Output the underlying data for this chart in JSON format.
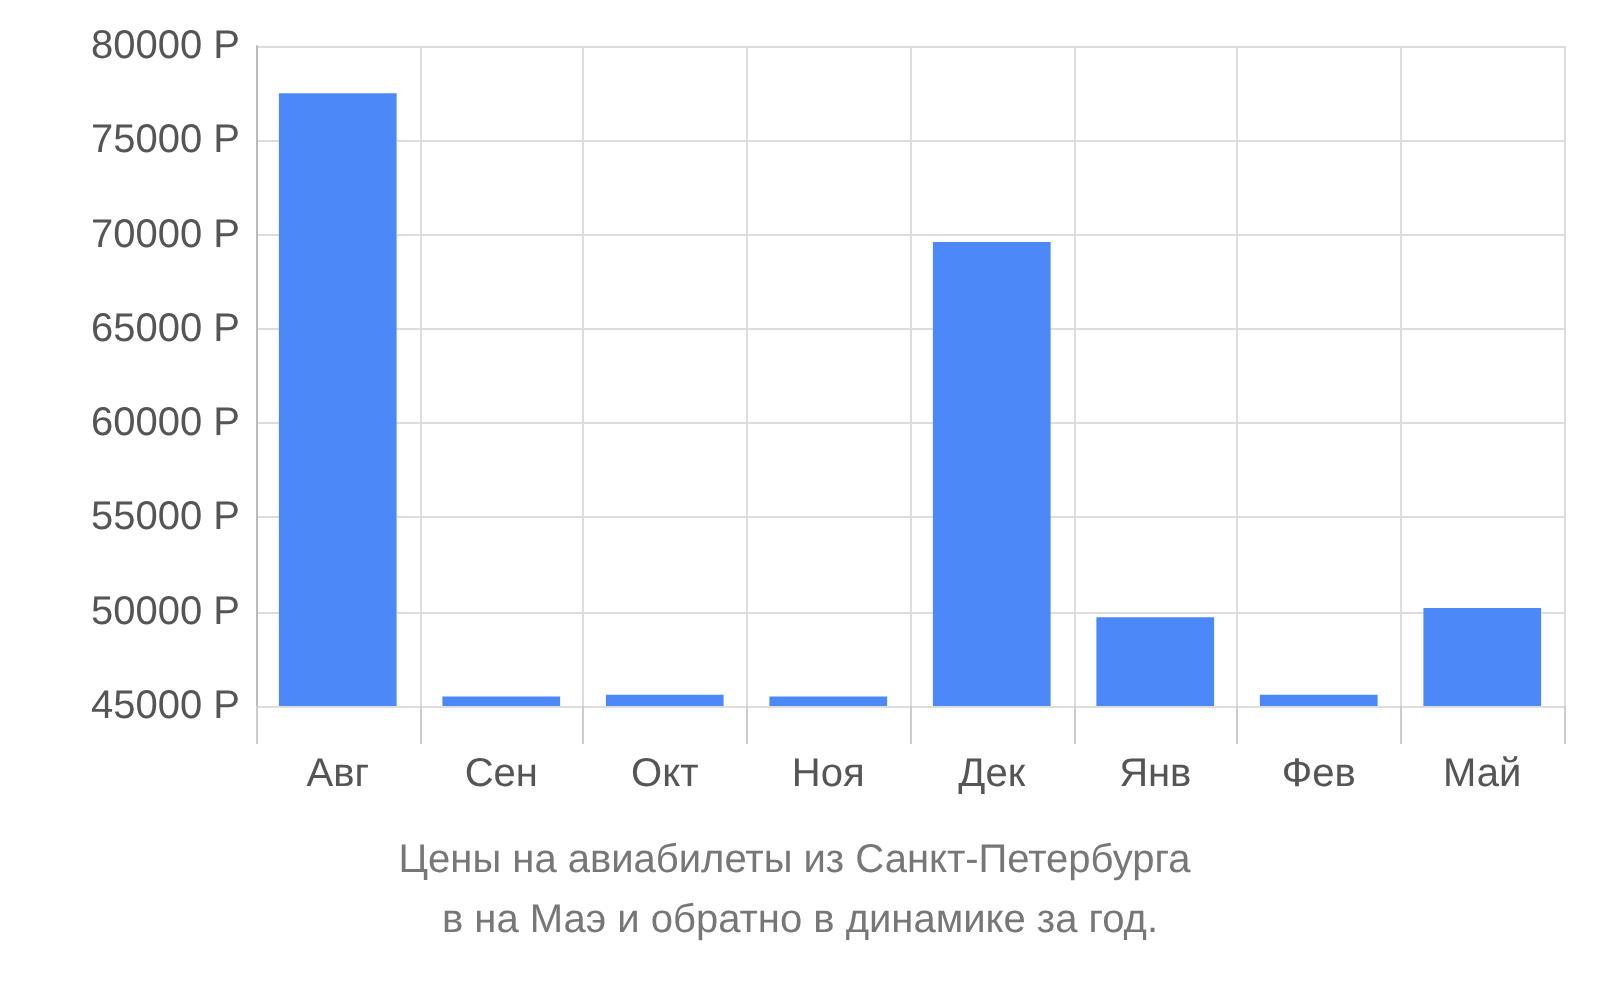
{
  "chart_data": {
    "type": "bar",
    "title": "Цены на авиабилеты из Санкт-Петербурга в на Маэ и обратно в динамике за год.",
    "categories": [
      "Авг",
      "Сен",
      "Окт",
      "Ноя",
      "Дек",
      "Янв",
      "Фев",
      "Май"
    ],
    "values": [
      77500,
      45500,
      45600,
      45500,
      69600,
      49700,
      45600,
      50200
    ],
    "color": "#4d88f9",
    "ylim": [
      45000,
      80000
    ],
    "yticks": [
      {
        "value": 45000,
        "label": "45000 Р"
      },
      {
        "value": 50000,
        "label": "50000 Р"
      },
      {
        "value": 55000,
        "label": "55000 Р"
      },
      {
        "value": 60000,
        "label": "60000 Р"
      },
      {
        "value": 65000,
        "label": "65000 Р"
      },
      {
        "value": 70000,
        "label": "70000 Р"
      },
      {
        "value": 75000,
        "label": "75000 Р"
      },
      {
        "value": 80000,
        "label": "80000 Р"
      }
    ],
    "grid": true
  }
}
